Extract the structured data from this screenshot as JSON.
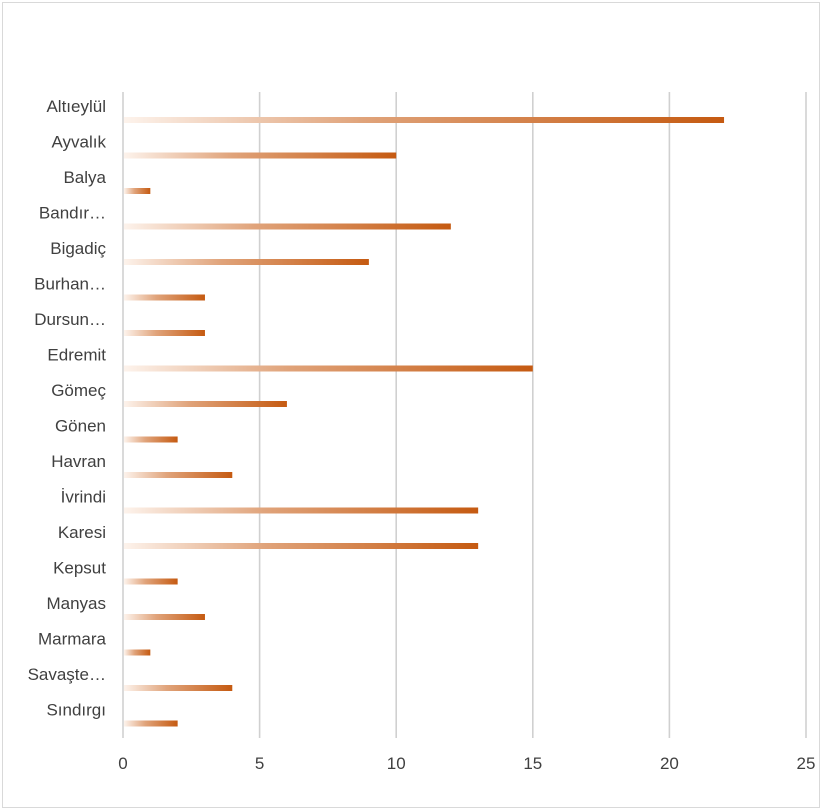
{
  "chart_data": {
    "type": "bar",
    "orientation": "horizontal",
    "title": "",
    "xlabel": "",
    "ylabel": "",
    "categories": [
      "Altıeylül",
      "Ayvalık",
      "Balya",
      "Bandır…",
      "Bigadiç",
      "Burhan…",
      "Dursun…",
      "Edremit",
      "Gömeç",
      "Gönen",
      "Havran",
      "İvrindi",
      "Karesi",
      "Kepsut",
      "Manyas",
      "Marmara",
      "Savaşte…",
      "Sındırgı"
    ],
    "values": [
      22,
      10,
      1,
      12,
      9,
      3,
      3,
      15,
      6,
      2,
      4,
      13,
      13,
      2,
      3,
      1,
      4,
      2
    ],
    "xlim": [
      0,
      25
    ],
    "xticks": [
      "0",
      "5",
      "10",
      "15",
      "20",
      "25"
    ],
    "grid": true,
    "legend": "none",
    "colors": {
      "bar_dark": "#c55a11",
      "bar_mid": "#e0a37a",
      "bar_light": "#fdf3ec",
      "grid": "#d0d0d0",
      "text": "#404040"
    }
  }
}
